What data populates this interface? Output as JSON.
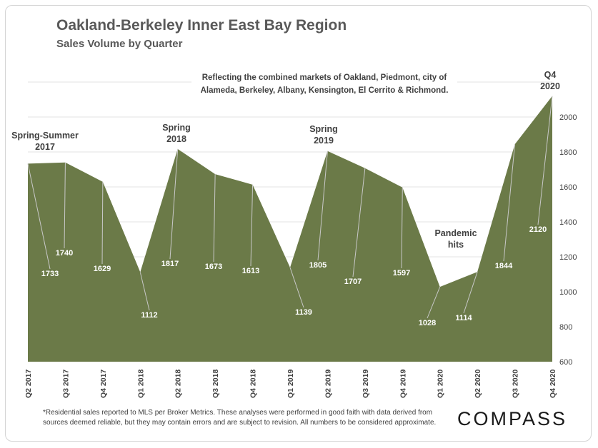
{
  "title": "Oakland-Berkeley Inner East Bay Region",
  "subtitle": "Sales Volume by Quarter",
  "note_lines": [
    "Reflecting the combined markets of Oakland, Piedmont, city of",
    "Alameda, Berkeley, Albany, Kensington, El Cerrito & Richmond."
  ],
  "footnote": "*Residential sales reported to MLS per Broker Metrics. These analyses were performed in good faith with data derived from sources deemed reliable, but they may contain errors and are subject to revision. All numbers to  be considered approximate.",
  "brand": "COMPASS",
  "colors": {
    "area": "#6b7a48",
    "leader": "#c8c8c8",
    "grid": "#e3e3e3"
  },
  "chart_data": {
    "type": "area",
    "categories": [
      "Q2 2017",
      "Q3 2017",
      "Q4 2017",
      "Q1 2018",
      "Q2 2018",
      "Q3 2018",
      "Q4 2018",
      "Q1 2019",
      "Q2 2019",
      "Q3 2019",
      "Q4 2019",
      "Q1 2020",
      "Q2 2020",
      "Q3 2020",
      "Q4 2020"
    ],
    "values": [
      1733,
      1740,
      1629,
      1112,
      1817,
      1673,
      1613,
      1139,
      1805,
      1707,
      1597,
      1028,
      1114,
      1844,
      2120
    ],
    "ylim": [
      600,
      2200
    ],
    "yticks": [
      600,
      800,
      1000,
      1200,
      1400,
      1600,
      1800,
      2000
    ],
    "grid": true,
    "annotations": [
      {
        "index": 0,
        "lines": [
          "Spring-Summer",
          "2017"
        ]
      },
      {
        "index": 4,
        "lines": [
          "Spring",
          "2018"
        ]
      },
      {
        "index": 8,
        "lines": [
          "Spring",
          "2019"
        ]
      },
      {
        "index": 12,
        "lines": [
          "Pandemic",
          "hits"
        ]
      },
      {
        "index": 14,
        "lines": [
          "Q4",
          "2020"
        ]
      }
    ]
  }
}
